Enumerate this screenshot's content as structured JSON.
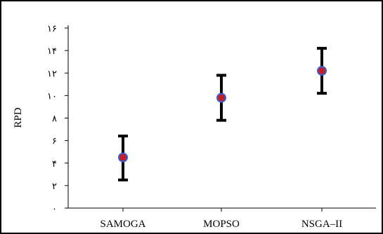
{
  "chart_data": {
    "type": "scatter",
    "title": "",
    "xlabel": "",
    "ylabel": "RPD",
    "categories": [
      "SAMOGA",
      "MOPSO",
      "NSGA–II"
    ],
    "y_ticks": [
      0,
      2,
      4,
      6,
      8,
      10,
      12,
      14,
      16
    ],
    "y_tick_labels": [
      "۰",
      "۲",
      "۴",
      "۶",
      "۸",
      "۱۰",
      "۱۲",
      "۱۴",
      "۱۶"
    ],
    "ylim": [
      0,
      16
    ],
    "grid": false,
    "legend": "none",
    "series": [
      {
        "values": [
          4.5,
          9.8,
          12.2
        ],
        "lower": [
          2.5,
          7.8,
          10.2
        ],
        "upper": [
          6.4,
          11.8,
          14.2
        ]
      }
    ],
    "colors": {
      "marker_fill": "#c0202a",
      "marker_edge": "#3a5fcf",
      "error_bar": "#000000",
      "axis": "#000000"
    }
  }
}
